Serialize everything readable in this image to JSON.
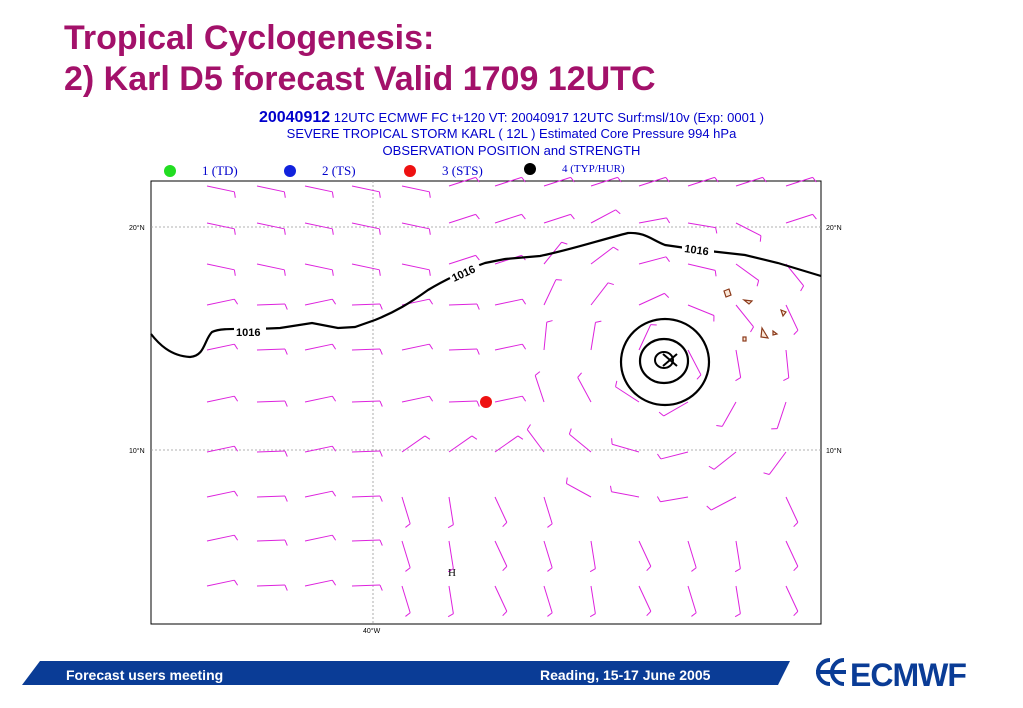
{
  "slide": {
    "title_line1": "Tropical Cyclogenesis:",
    "title_line2": "2) Karl D5 forecast Valid 1709 12UTC"
  },
  "chart_header": {
    "base_date": "20040912",
    "run_info": "12UTC ECMWF  FC t+120 VT:   20040917 12UTC Surf:msl/10v (Exp: 0001  )",
    "storm_info": "SEVERE TROPICAL STORM KARL ( 12L ) Estimated Core Pressure 994 hPa",
    "obs_title": "OBSERVATION POSITION and STRENGTH"
  },
  "legend": [
    {
      "label": "1 (TD)",
      "color": "#22dd22"
    },
    {
      "label": "2 (TS)",
      "color": "#1122dd"
    },
    {
      "label": "3 (STS)",
      "color": "#ee1111"
    },
    {
      "label": "4 (TYP/HUR)",
      "color": "#000000"
    }
  ],
  "map": {
    "lat_labels": [
      "20°N",
      "10°N"
    ],
    "lon_label": "40°W",
    "isobar_labels": [
      "1016",
      "1016",
      "1016"
    ],
    "high_label": "H",
    "isobar_color": "#000000",
    "wind_color": "#dd22dd",
    "observed_storm_strength": "3 (STS)"
  },
  "footer": {
    "left_text": "Forecast users meeting",
    "right_text": "Reading, 15-17 June 2005",
    "logo_text": "ECMWF",
    "bar_color": "#0a3c96"
  }
}
